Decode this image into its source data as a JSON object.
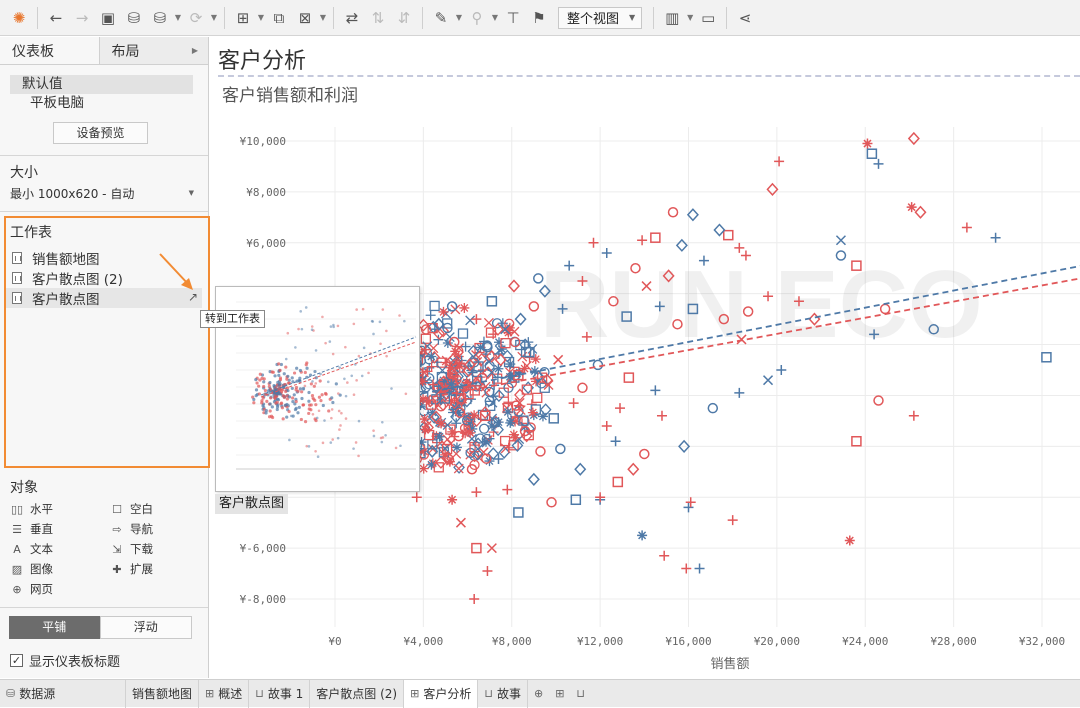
{
  "toolbar": {
    "view_select": "整个视图"
  },
  "left_panel": {
    "tabs": [
      "仪表板",
      "布局"
    ],
    "devices": [
      "默认值",
      "平板电脑"
    ],
    "device_preview_button": "设备预览",
    "size_title": "大小",
    "size_value": "最小 1000x620 - 自动",
    "worksheets_title": "工作表",
    "worksheets": [
      "销售额地图",
      "客户散点图 (2)",
      "客户散点图"
    ],
    "objects_title": "对象",
    "objects": [
      {
        "label": "水平",
        "icon": "horizontal-icon"
      },
      {
        "label": "空白",
        "icon": "blank-icon"
      },
      {
        "label": "垂直",
        "icon": "vertical-icon"
      },
      {
        "label": "导航",
        "icon": "navigation-icon"
      },
      {
        "label": "文本",
        "icon": "text-icon"
      },
      {
        "label": "下载",
        "icon": "download-icon"
      },
      {
        "label": "图像",
        "icon": "image-icon"
      },
      {
        "label": "扩展",
        "icon": "extension-icon"
      },
      {
        "label": "网页",
        "icon": "web-icon"
      }
    ],
    "layout_modes": [
      "平铺",
      "浮动"
    ],
    "show_title_checkbox": "显示仪表板标题"
  },
  "dashboard": {
    "title": "客户分析",
    "sheet_title": "客户销售额和利润",
    "hover_thumb_label": "客户散点图",
    "tooltip": "转到工作表"
  },
  "chart_data": {
    "type": "scatter",
    "xlabel": "销售额",
    "ylabel": "",
    "xlim": [
      -2000,
      35000
    ],
    "ylim": [
      -9000,
      11000
    ],
    "x_ticks": [
      "¥0",
      "¥4,000",
      "¥8,000",
      "¥12,000",
      "¥16,000",
      "¥20,000",
      "¥24,000",
      "¥28,000",
      "¥32,000"
    ],
    "y_ticks": [
      "¥10,000",
      "¥8,000",
      "¥6,000",
      "¥-6,000",
      "¥-8,000"
    ],
    "colors": {
      "series_a": "#4e79a7",
      "series_b": "#e15759"
    },
    "trend_lines": [
      {
        "series": "series_a",
        "x": [
          3500,
          35000
        ],
        "y": [
          0,
          5300
        ]
      },
      {
        "series": "series_b",
        "x": [
          3500,
          35000
        ],
        "y": [
          -200,
          4800
        ]
      }
    ],
    "points": [
      {
        "x": 24300,
        "y": 9500,
        "m": "square",
        "s": "a"
      },
      {
        "x": 24100,
        "y": 9900,
        "m": "asterisk",
        "s": "b"
      },
      {
        "x": 26200,
        "y": 10100,
        "m": "diamond",
        "s": "b"
      },
      {
        "x": 24600,
        "y": 9100,
        "m": "plus",
        "s": "a"
      },
      {
        "x": 20100,
        "y": 9200,
        "m": "plus",
        "s": "b"
      },
      {
        "x": 19800,
        "y": 8100,
        "m": "diamond",
        "s": "b"
      },
      {
        "x": 26100,
        "y": 7400,
        "m": "asterisk",
        "s": "b"
      },
      {
        "x": 26500,
        "y": 7200,
        "m": "diamond",
        "s": "b"
      },
      {
        "x": 28600,
        "y": 6600,
        "m": "plus",
        "s": "b"
      },
      {
        "x": 29900,
        "y": 6200,
        "m": "plus",
        "s": "a"
      },
      {
        "x": 22900,
        "y": 6100,
        "m": "cross",
        "s": "a"
      },
      {
        "x": 22900,
        "y": 5500,
        "m": "circle",
        "s": "a"
      },
      {
        "x": 23600,
        "y": 5100,
        "m": "square",
        "s": "b"
      },
      {
        "x": 17800,
        "y": 6300,
        "m": "square",
        "s": "b"
      },
      {
        "x": 17400,
        "y": 6500,
        "m": "diamond",
        "s": "a"
      },
      {
        "x": 15300,
        "y": 7200,
        "m": "circle",
        "s": "b"
      },
      {
        "x": 16200,
        "y": 7100,
        "m": "diamond",
        "s": "a"
      },
      {
        "x": 18300,
        "y": 5800,
        "m": "plus",
        "s": "b"
      },
      {
        "x": 18600,
        "y": 5500,
        "m": "plus",
        "s": "b"
      },
      {
        "x": 13900,
        "y": 6100,
        "m": "plus",
        "s": "b"
      },
      {
        "x": 11700,
        "y": 6000,
        "m": "plus",
        "s": "b"
      },
      {
        "x": 14500,
        "y": 6200,
        "m": "square",
        "s": "b"
      },
      {
        "x": 15700,
        "y": 5900,
        "m": "diamond",
        "s": "a"
      },
      {
        "x": 16700,
        "y": 5300,
        "m": "plus",
        "s": "a"
      },
      {
        "x": 21000,
        "y": 3700,
        "m": "plus",
        "s": "b"
      },
      {
        "x": 24900,
        "y": 3400,
        "m": "circle",
        "s": "b"
      },
      {
        "x": 24400,
        "y": 2400,
        "m": "plus",
        "s": "a"
      },
      {
        "x": 27100,
        "y": 2600,
        "m": "circle",
        "s": "a"
      },
      {
        "x": 32200,
        "y": 1500,
        "m": "square",
        "s": "a"
      },
      {
        "x": 21700,
        "y": 3000,
        "m": "diamond",
        "s": "b"
      },
      {
        "x": 19600,
        "y": 3900,
        "m": "plus",
        "s": "b"
      },
      {
        "x": 18700,
        "y": 3300,
        "m": "circle",
        "s": "b"
      },
      {
        "x": 18400,
        "y": 2200,
        "m": "cross",
        "s": "b"
      },
      {
        "x": 17600,
        "y": 3000,
        "m": "circle",
        "s": "b"
      },
      {
        "x": 20200,
        "y": 1000,
        "m": "plus",
        "s": "a"
      },
      {
        "x": 19600,
        "y": 600,
        "m": "cross",
        "s": "a"
      },
      {
        "x": 18300,
        "y": 100,
        "m": "plus",
        "s": "a"
      },
      {
        "x": 24600,
        "y": -200,
        "m": "circle",
        "s": "b"
      },
      {
        "x": 23600,
        "y": -1800,
        "m": "square",
        "s": "b"
      },
      {
        "x": 26200,
        "y": -800,
        "m": "plus",
        "s": "b"
      },
      {
        "x": 23300,
        "y": -5700,
        "m": "asterisk",
        "s": "b"
      },
      {
        "x": 16000,
        "y": -4400,
        "m": "plus",
        "s": "a"
      },
      {
        "x": 16100,
        "y": -4200,
        "m": "plus",
        "s": "b"
      },
      {
        "x": 18000,
        "y": -4900,
        "m": "plus",
        "s": "b"
      },
      {
        "x": 13900,
        "y": -5500,
        "m": "asterisk",
        "s": "a"
      },
      {
        "x": 14900,
        "y": -6300,
        "m": "plus",
        "s": "b"
      },
      {
        "x": 15900,
        "y": -6800,
        "m": "plus",
        "s": "b"
      },
      {
        "x": 16500,
        "y": -6800,
        "m": "plus",
        "s": "a"
      },
      {
        "x": 6400,
        "y": -6000,
        "m": "square",
        "s": "b"
      },
      {
        "x": 7100,
        "y": -6000,
        "m": "cross",
        "s": "b"
      },
      {
        "x": 6900,
        "y": -6900,
        "m": "plus",
        "s": "b"
      },
      {
        "x": 6300,
        "y": -8000,
        "m": "plus",
        "s": "b"
      },
      {
        "x": 5700,
        "y": -5000,
        "m": "cross",
        "s": "b"
      },
      {
        "x": 3700,
        "y": -4000,
        "m": "plus",
        "s": "b"
      },
      {
        "x": 9800,
        "y": -4200,
        "m": "circle",
        "s": "b"
      },
      {
        "x": 10900,
        "y": -4100,
        "m": "square",
        "s": "a"
      },
      {
        "x": 12000,
        "y": -4100,
        "m": "plus",
        "s": "a"
      },
      {
        "x": 12000,
        "y": -4000,
        "m": "plus",
        "s": "b"
      },
      {
        "x": 9000,
        "y": -3300,
        "m": "diamond",
        "s": "a"
      },
      {
        "x": 7800,
        "y": -3700,
        "m": "plus",
        "s": "b"
      },
      {
        "x": 6400,
        "y": -3800,
        "m": "plus",
        "s": "b"
      },
      {
        "x": 13500,
        "y": -2900,
        "m": "diamond",
        "s": "b"
      },
      {
        "x": 14000,
        "y": -2300,
        "m": "circle",
        "s": "b"
      },
      {
        "x": 11100,
        "y": -2900,
        "m": "diamond",
        "s": "a"
      },
      {
        "x": 10200,
        "y": -2100,
        "m": "circle",
        "s": "a"
      },
      {
        "x": 9300,
        "y": -2200,
        "m": "circle",
        "s": "b"
      },
      {
        "x": 12700,
        "y": -1800,
        "m": "plus",
        "s": "a"
      },
      {
        "x": 15800,
        "y": -2000,
        "m": "diamond",
        "s": "a"
      },
      {
        "x": 12900,
        "y": -500,
        "m": "plus",
        "s": "b"
      },
      {
        "x": 12300,
        "y": -1200,
        "m": "plus",
        "s": "b"
      },
      {
        "x": 14800,
        "y": -800,
        "m": "plus",
        "s": "b"
      },
      {
        "x": 17100,
        "y": -500,
        "m": "circle",
        "s": "a"
      },
      {
        "x": 14500,
        "y": 200,
        "m": "plus",
        "s": "a"
      },
      {
        "x": 13300,
        "y": 700,
        "m": "square",
        "s": "b"
      },
      {
        "x": 11900,
        "y": 1200,
        "m": "circle",
        "s": "a"
      },
      {
        "x": 11200,
        "y": 300,
        "m": "circle",
        "s": "b"
      },
      {
        "x": 9600,
        "y": 600,
        "m": "diamond",
        "s": "b"
      },
      {
        "x": 10100,
        "y": 1400,
        "m": "cross",
        "s": "b"
      },
      {
        "x": 8800,
        "y": 1700,
        "m": "square",
        "s": "a"
      },
      {
        "x": 7500,
        "y": 1400,
        "m": "diamond",
        "s": "b"
      },
      {
        "x": 6900,
        "y": 1900,
        "m": "circle",
        "s": "a"
      },
      {
        "x": 6100,
        "y": 1200,
        "m": "diamond",
        "s": "b"
      },
      {
        "x": 5400,
        "y": 2100,
        "m": "circle",
        "s": "b"
      },
      {
        "x": 8300,
        "y": 800,
        "m": "square",
        "s": "b"
      },
      {
        "x": 7200,
        "y": 400,
        "m": "plus",
        "s": "a"
      },
      {
        "x": 8200,
        "y": -400,
        "m": "circle",
        "s": "b"
      },
      {
        "x": 6800,
        "y": -800,
        "m": "square",
        "s": "b"
      },
      {
        "x": 5600,
        "y": -1600,
        "m": "circle",
        "s": "b"
      },
      {
        "x": 4800,
        "y": -1100,
        "m": "asterisk",
        "s": "b"
      },
      {
        "x": 4400,
        "y": -2200,
        "m": "diamond",
        "s": "a"
      },
      {
        "x": 5200,
        "y": -2600,
        "m": "asterisk",
        "s": "b"
      },
      {
        "x": 6200,
        "y": -2900,
        "m": "circle",
        "s": "b"
      },
      {
        "x": 7400,
        "y": -2500,
        "m": "plus",
        "s": "a"
      },
      {
        "x": 8600,
        "y": -1400,
        "m": "circle",
        "s": "b"
      },
      {
        "x": 9900,
        "y": -900,
        "m": "square",
        "s": "a"
      },
      {
        "x": 10800,
        "y": -300,
        "m": "plus",
        "s": "b"
      },
      {
        "x": 11400,
        "y": 2300,
        "m": "plus",
        "s": "b"
      },
      {
        "x": 10300,
        "y": 3400,
        "m": "plus",
        "s": "a"
      },
      {
        "x": 9500,
        "y": 4100,
        "m": "diamond",
        "s": "a"
      },
      {
        "x": 9000,
        "y": 3500,
        "m": "circle",
        "s": "b"
      },
      {
        "x": 8400,
        "y": 3000,
        "m": "diamond",
        "s": "a"
      },
      {
        "x": 7700,
        "y": 2600,
        "m": "cross",
        "s": "a"
      },
      {
        "x": 11200,
        "y": 4500,
        "m": "plus",
        "s": "b"
      },
      {
        "x": 12600,
        "y": 3700,
        "m": "circle",
        "s": "b"
      },
      {
        "x": 13200,
        "y": 3100,
        "m": "square",
        "s": "a"
      },
      {
        "x": 14100,
        "y": 4300,
        "m": "cross",
        "s": "b"
      },
      {
        "x": 14700,
        "y": 3500,
        "m": "plus",
        "s": "a"
      },
      {
        "x": 15500,
        "y": 2800,
        "m": "circle",
        "s": "b"
      },
      {
        "x": 16200,
        "y": 3400,
        "m": "square",
        "s": "a"
      },
      {
        "x": 15100,
        "y": 4700,
        "m": "diamond",
        "s": "b"
      },
      {
        "x": 13600,
        "y": 5000,
        "m": "circle",
        "s": "b"
      },
      {
        "x": 12300,
        "y": 5600,
        "m": "plus",
        "s": "a"
      },
      {
        "x": 10600,
        "y": 5100,
        "m": "plus",
        "s": "a"
      },
      {
        "x": 9200,
        "y": 4600,
        "m": "circle",
        "s": "a"
      },
      {
        "x": 8100,
        "y": 4300,
        "m": "diamond",
        "s": "b"
      },
      {
        "x": 7100,
        "y": 3700,
        "m": "square",
        "s": "a"
      },
      {
        "x": 6400,
        "y": 3000,
        "m": "plus",
        "s": "b"
      },
      {
        "x": 5300,
        "y": 3500,
        "m": "circle",
        "s": "a"
      },
      {
        "x": 4700,
        "y": 2800,
        "m": "diamond",
        "s": "a"
      },
      {
        "x": 4100,
        "y": 1800,
        "m": "plus",
        "s": "b"
      },
      {
        "x": 12800,
        "y": -3400,
        "m": "square",
        "s": "b"
      },
      {
        "x": 8300,
        "y": -4600,
        "m": "square",
        "s": "a"
      },
      {
        "x": 5300,
        "y": -4100,
        "m": "asterisk",
        "s": "b"
      }
    ],
    "cluster_center": {
      "x": 3800,
      "y": 300
    }
  },
  "bottom_tabs": [
    {
      "label": "数据源",
      "icon": "datasource-icon"
    },
    {
      "label": "销售额地图",
      "icon": ""
    },
    {
      "label": "概述",
      "icon": "dashboard-icon"
    },
    {
      "label": "故事 1",
      "icon": "story-icon"
    },
    {
      "label": "客户散点图 (2)",
      "icon": ""
    },
    {
      "label": "客户分析",
      "icon": "dashboard-icon",
      "active": true
    },
    {
      "label": "故事",
      "icon": "story-icon"
    }
  ]
}
